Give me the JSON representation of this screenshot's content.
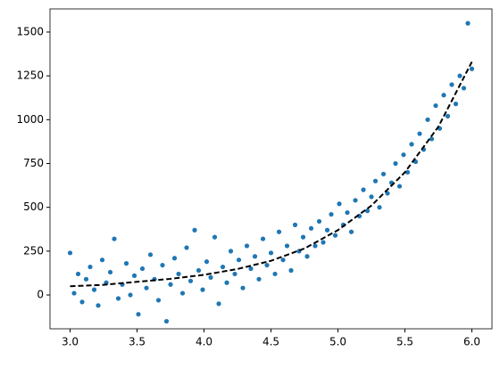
{
  "chart_data": {
    "type": "scatter",
    "xlim": [
      2.85,
      6.15
    ],
    "ylim": [
      -193,
      1632
    ],
    "xticks": [
      {
        "value": 3,
        "label": "3.0"
      },
      3.5,
      {
        "value": 4,
        "label": "4.0"
      },
      4.5,
      {
        "value": 5,
        "label": "5.0"
      },
      5.5,
      {
        "value": 6,
        "label": "6.0"
      }
    ],
    "yticks": [
      0,
      250,
      500,
      750,
      1000,
      1250,
      1500
    ],
    "points": {
      "color": "#1f77b4",
      "x": [
        3.0,
        3.03,
        3.06,
        3.09,
        3.12,
        3.15,
        3.18,
        3.21,
        3.24,
        3.27,
        3.3,
        3.33,
        3.36,
        3.39,
        3.42,
        3.45,
        3.48,
        3.51,
        3.54,
        3.57,
        3.6,
        3.63,
        3.66,
        3.69,
        3.72,
        3.75,
        3.78,
        3.81,
        3.84,
        3.87,
        3.9,
        3.93,
        3.96,
        3.99,
        4.02,
        4.05,
        4.08,
        4.11,
        4.14,
        4.17,
        4.2,
        4.23,
        4.26,
        4.29,
        4.32,
        4.35,
        4.38,
        4.41,
        4.44,
        4.47,
        4.5,
        4.53,
        4.56,
        4.59,
        4.62,
        4.65,
        4.68,
        4.71,
        4.74,
        4.77,
        4.8,
        4.83,
        4.86,
        4.89,
        4.92,
        4.95,
        4.98,
        5.01,
        5.04,
        5.07,
        5.1,
        5.13,
        5.16,
        5.19,
        5.22,
        5.25,
        5.28,
        5.31,
        5.34,
        5.37,
        5.4,
        5.43,
        5.46,
        5.49,
        5.52,
        5.55,
        5.58,
        5.61,
        5.64,
        5.67,
        5.7,
        5.73,
        5.76,
        5.79,
        5.82,
        5.85,
        5.88,
        5.91,
        5.94,
        5.97,
        6.0
      ],
      "y": [
        240,
        10,
        120,
        -40,
        90,
        160,
        30,
        -60,
        200,
        70,
        130,
        320,
        -20,
        60,
        180,
        0,
        110,
        -110,
        150,
        40,
        230,
        90,
        -30,
        170,
        -150,
        60,
        210,
        120,
        10,
        270,
        80,
        370,
        140,
        30,
        190,
        100,
        330,
        -50,
        160,
        70,
        250,
        120,
        200,
        40,
        280,
        150,
        220,
        90,
        320,
        170,
        240,
        120,
        360,
        200,
        280,
        140,
        400,
        250,
        330,
        220,
        380,
        280,
        420,
        300,
        370,
        460,
        340,
        520,
        400,
        470,
        360,
        540,
        450,
        600,
        480,
        560,
        650,
        500,
        690,
        580,
        640,
        750,
        620,
        800,
        700,
        860,
        760,
        920,
        830,
        1000,
        890,
        1080,
        950,
        1140,
        1020,
        1200,
        1090,
        1250,
        1180,
        1550,
        1290
      ]
    },
    "curve": {
      "color": "#000000",
      "x": [
        3.0,
        3.25,
        3.5,
        3.75,
        4.0,
        4.25,
        4.5,
        4.75,
        5.0,
        5.25,
        5.5,
        5.75,
        6.0
      ],
      "y": [
        50,
        58,
        75,
        92,
        115,
        148,
        195,
        265,
        370,
        510,
        700,
        960,
        1330
      ]
    }
  }
}
